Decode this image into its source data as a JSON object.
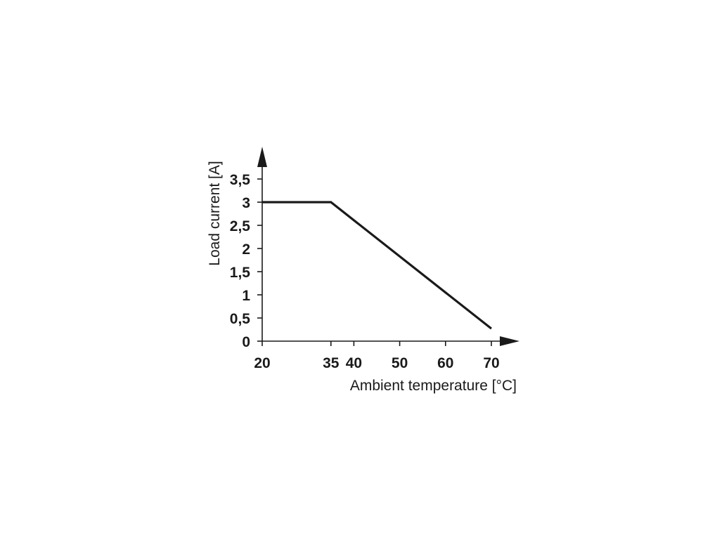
{
  "chart_data": {
    "type": "line",
    "title": "",
    "xlabel": "Ambient temperature [°C]",
    "ylabel": "Load current [A]",
    "xlim": [
      20,
      70
    ],
    "ylim": [
      0,
      3.5
    ],
    "x_ticks": [
      20,
      35,
      40,
      50,
      60,
      70
    ],
    "x_tick_labels": [
      "20",
      "35",
      "40",
      "50",
      "60",
      "70"
    ],
    "y_ticks": [
      0,
      0.5,
      1,
      1.5,
      2,
      2.5,
      3,
      3.5
    ],
    "y_tick_labels": [
      "0",
      "0,5",
      "1",
      "1,5",
      "2",
      "2,5",
      "3",
      "3,5"
    ],
    "grid": false,
    "series": [
      {
        "x": [
          20,
          35,
          70
        ],
        "y": [
          3,
          3,
          0.27
        ]
      }
    ],
    "colors": {
      "line": "#1a1a1a",
      "axis": "#1a1a1a"
    }
  }
}
